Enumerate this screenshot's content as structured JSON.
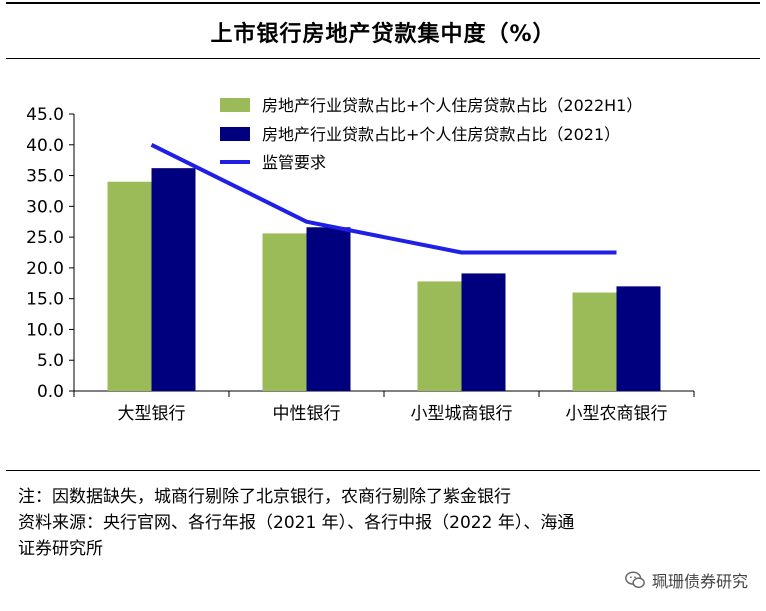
{
  "title": "上市银行房地产贷款集中度（%）",
  "chart_data": {
    "type": "bar",
    "categories": [
      "大型银行",
      "中性银行",
      "小型城商银行",
      "小型农商银行"
    ],
    "series": [
      {
        "name": "房地产行业贷款占比+个人住房贷款占比（2022H1）",
        "type": "bar",
        "color": "#9bbb59",
        "values": [
          34.0,
          25.6,
          17.8,
          16.0
        ]
      },
      {
        "name": "房地产行业贷款占比+个人住房贷款占比（2021）",
        "type": "bar",
        "color": "#00007f",
        "values": [
          36.2,
          26.6,
          19.1,
          17.0
        ]
      },
      {
        "name": "监管要求",
        "type": "line",
        "color": "#1f1fe6",
        "values": [
          40.0,
          27.5,
          22.5,
          22.5
        ]
      }
    ],
    "yticks": [
      "0.0",
      "5.0",
      "10.0",
      "15.0",
      "20.0",
      "25.0",
      "30.0",
      "35.0",
      "40.0",
      "45.0"
    ],
    "ylim": [
      0,
      45
    ],
    "legend_position": "top-right"
  },
  "notes": {
    "line1": "注：因数据缺失，城商行剔除了北京银行，农商行剔除了紫金银行",
    "line2": "资料来源：央行官网、各行年报（2021 年）、各行中报（2022 年）、海通",
    "line3": "证券研究所"
  },
  "watermark": "珮珊债券研究"
}
